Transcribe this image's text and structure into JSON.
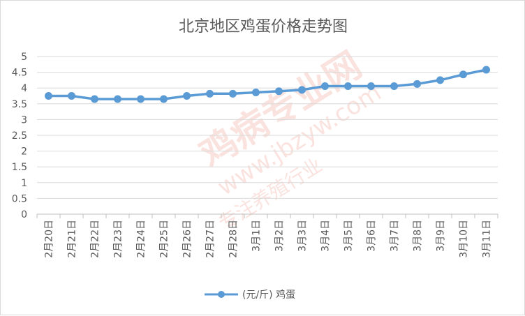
{
  "chart_data": {
    "type": "line",
    "title": "北京地区鸡蛋价格走势图",
    "categories": [
      "2月20日",
      "2月21日",
      "2月22日",
      "2月23日",
      "2月24日",
      "2月25日",
      "2月26日",
      "2月27日",
      "2月28日",
      "3月1日",
      "3月2日",
      "3月3日",
      "3月4日",
      "3月5日",
      "3月6日",
      "3月7日",
      "3月8日",
      "3月9日",
      "3月10日",
      "3月11日"
    ],
    "series": [
      {
        "name": "(元/斤) 鸡蛋",
        "values": [
          3.75,
          3.75,
          3.65,
          3.65,
          3.65,
          3.65,
          3.75,
          3.82,
          3.82,
          3.86,
          3.9,
          3.94,
          4.06,
          4.06,
          4.06,
          4.06,
          4.13,
          4.25,
          4.43,
          4.58
        ]
      }
    ],
    "y_ticks": [
      "5",
      "4.5",
      "4",
      "3.5",
      "3",
      "2.5",
      "2",
      "1.5",
      "1",
      "0.5",
      "0"
    ],
    "ylim": [
      0,
      5
    ],
    "grid": true,
    "legend_position": "bottom",
    "color": "#5b9bd5",
    "watermark": {
      "main": "鸡病专业网",
      "url": "www.jbzyw.com",
      "slogan": "专注养殖行业"
    }
  }
}
